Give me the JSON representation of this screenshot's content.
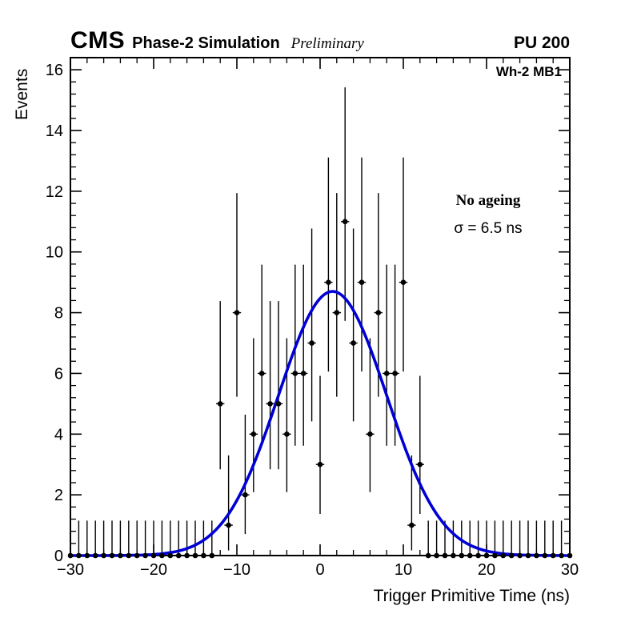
{
  "header": {
    "cms": "CMS",
    "subtitle": "Phase-2 Simulation",
    "preliminary": "Preliminary",
    "pileup": "PU 200"
  },
  "plot": {
    "region_label": "Wh-2 MB1",
    "ageing_label": "No ageing",
    "sigma_label": "σ = 6.5 ns"
  },
  "chart_data": {
    "type": "scatter",
    "title": "",
    "xlabel": "Trigger Primitive Time (ns)",
    "ylabel": "Events",
    "xlim": [
      -30,
      30
    ],
    "ylim": [
      0,
      16.4
    ],
    "x_major_ticks": [
      -30,
      -20,
      -10,
      0,
      10,
      20,
      30
    ],
    "x_minor_step": 2,
    "y_major_ticks": [
      0,
      2,
      4,
      6,
      8,
      10,
      12,
      14,
      16
    ],
    "y_minor_step": 0.4,
    "grid": false,
    "legend_position": "none",
    "marker_color": "#000000",
    "error_x_half_width": 0.5,
    "fit": {
      "type": "gaussian",
      "amplitude": 8.7,
      "mean": 1.5,
      "sigma": 6.5,
      "color": "#0000d4"
    },
    "poisson_errors": {
      "0": [
        0,
        1.15
      ],
      "1": [
        0.83,
        2.3
      ],
      "2": [
        1.29,
        2.64
      ],
      "3": [
        1.63,
        2.92
      ],
      "4": [
        1.91,
        3.16
      ],
      "5": [
        2.16,
        3.38
      ],
      "6": [
        2.38,
        3.58
      ],
      "7": [
        2.58,
        3.77
      ],
      "8": [
        2.77,
        3.94
      ],
      "9": [
        2.94,
        4.11
      ],
      "11": [
        3.27,
        4.42
      ]
    },
    "points": [
      [
        -30,
        0
      ],
      [
        -29,
        0
      ],
      [
        -28,
        0
      ],
      [
        -27,
        0
      ],
      [
        -26,
        0
      ],
      [
        -25,
        0
      ],
      [
        -24,
        0
      ],
      [
        -23,
        0
      ],
      [
        -22,
        0
      ],
      [
        -21,
        0
      ],
      [
        -20,
        0
      ],
      [
        -19,
        0
      ],
      [
        -18,
        0
      ],
      [
        -17,
        0
      ],
      [
        -16,
        0
      ],
      [
        -15,
        0
      ],
      [
        -14,
        0
      ],
      [
        -13,
        0
      ],
      [
        -12,
        5
      ],
      [
        -11,
        1
      ],
      [
        -10,
        8
      ],
      [
        -9,
        2
      ],
      [
        -8,
        4
      ],
      [
        -7,
        6
      ],
      [
        -6,
        5
      ],
      [
        -5,
        5
      ],
      [
        -4,
        4
      ],
      [
        -3,
        6
      ],
      [
        -2,
        6
      ],
      [
        -1,
        7
      ],
      [
        0,
        3
      ],
      [
        1,
        9
      ],
      [
        2,
        8
      ],
      [
        3,
        11
      ],
      [
        4,
        7
      ],
      [
        5,
        9
      ],
      [
        6,
        4
      ],
      [
        7,
        8
      ],
      [
        8,
        6
      ],
      [
        9,
        6
      ],
      [
        10,
        9
      ],
      [
        11,
        1
      ],
      [
        12,
        3
      ],
      [
        13,
        0
      ],
      [
        14,
        0
      ],
      [
        15,
        0
      ],
      [
        16,
        0
      ],
      [
        17,
        0
      ],
      [
        18,
        0
      ],
      [
        19,
        0
      ],
      [
        20,
        0
      ],
      [
        21,
        0
      ],
      [
        22,
        0
      ],
      [
        23,
        0
      ],
      [
        24,
        0
      ],
      [
        25,
        0
      ],
      [
        26,
        0
      ],
      [
        27,
        0
      ],
      [
        28,
        0
      ],
      [
        29,
        0
      ],
      [
        30,
        0
      ]
    ]
  }
}
